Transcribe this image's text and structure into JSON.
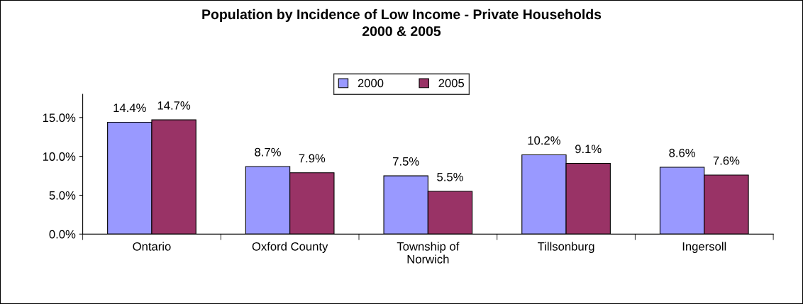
{
  "chart_data": {
    "type": "bar",
    "title": "Population by Incidence of Low Income - Private Households\n2000 & 2005",
    "categories": [
      "Ontario",
      "Oxford County",
      "Township of\nNorwich",
      "Tillsonburg",
      "Ingersoll"
    ],
    "series": [
      {
        "name": "2000",
        "color": "#9999ff",
        "values": [
          14.4,
          8.7,
          7.5,
          10.2,
          8.6
        ],
        "value_labels": [
          "14.4%",
          "8.7%",
          "7.5%",
          "10.2%",
          "8.6%"
        ]
      },
      {
        "name": "2005",
        "color": "#993366",
        "values": [
          14.7,
          7.9,
          5.5,
          9.1,
          7.6
        ],
        "value_labels": [
          "14.7%",
          "7.9%",
          "5.5%",
          "9.1%",
          "7.6%"
        ]
      }
    ],
    "ylim": [
      0,
      18
    ],
    "yticks": [
      {
        "value": 0,
        "label": "0.0%"
      },
      {
        "value": 5,
        "label": "5.0%"
      },
      {
        "value": 10,
        "label": "10.0%"
      },
      {
        "value": 15,
        "label": "15.0%"
      }
    ],
    "legend": "top",
    "grid": false
  }
}
